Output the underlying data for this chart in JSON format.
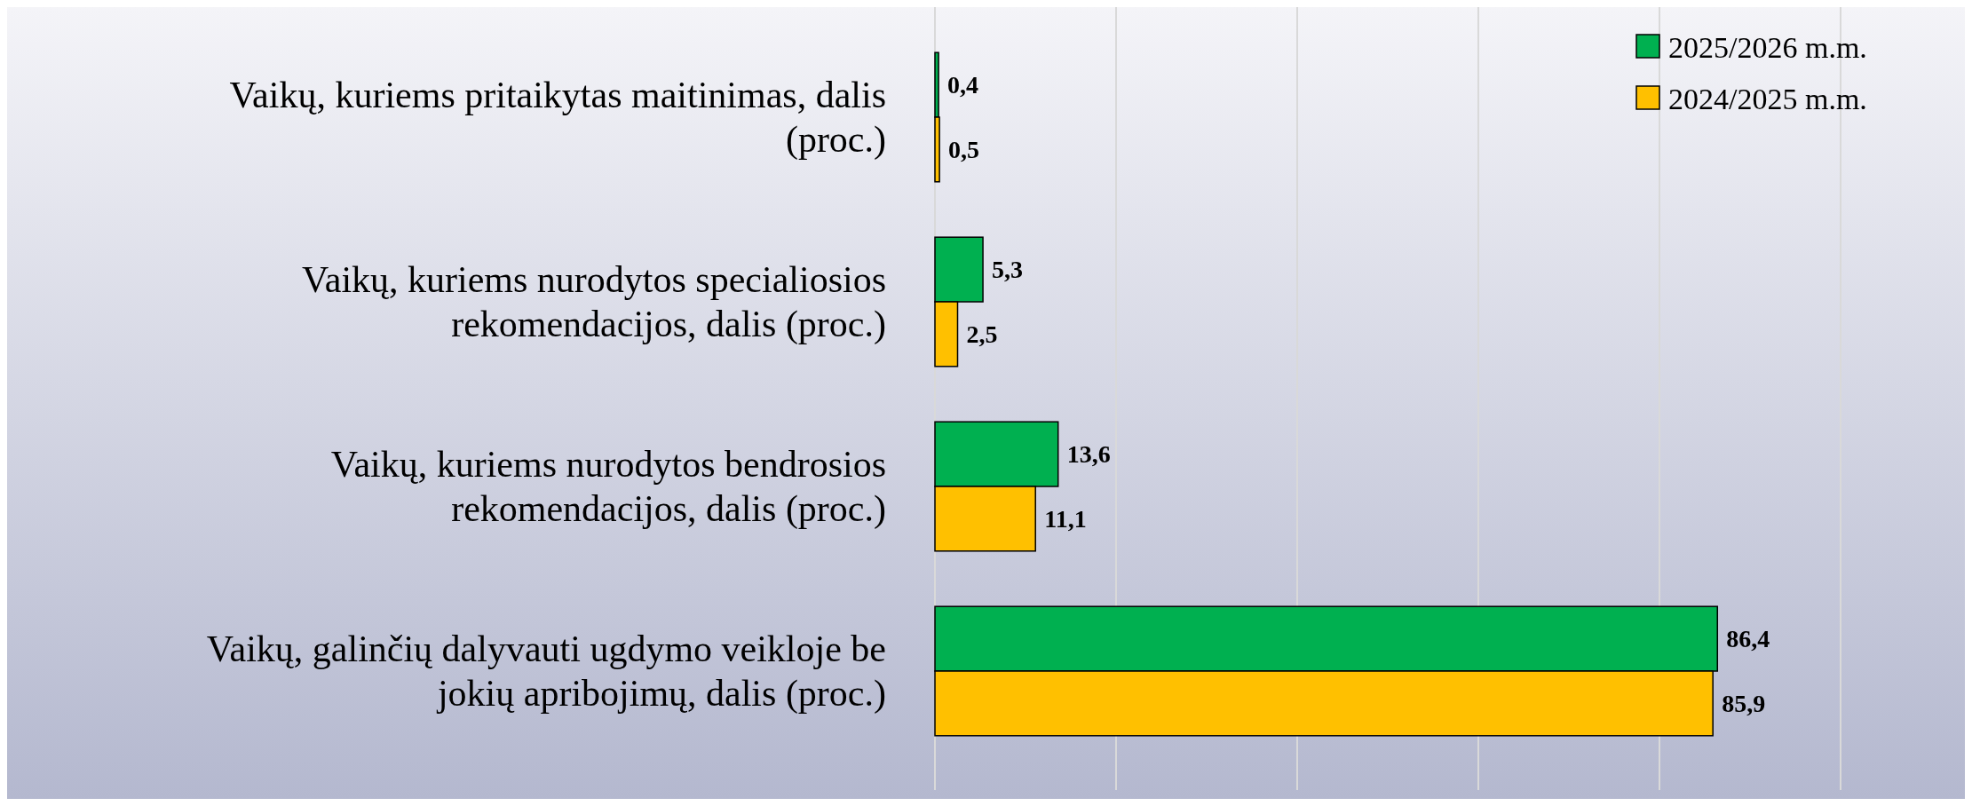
{
  "chart_data": {
    "type": "bar",
    "orientation": "horizontal",
    "categories": [
      "Vaikų, kuriems pritaikytas maitinimas, dalis (proc.)",
      "Vaikų, kuriems nurodytos specialiosios rekomendacijos, dalis (proc.)",
      "Vaikų, kuriems nurodytos bendrosios rekomendacijos, dalis (proc.)",
      "Vaikų, galinčių dalyvauti ugdymo veikloje be jokių apribojimų, dalis (proc.)"
    ],
    "series": [
      {
        "name": "2025/2026 m.m.",
        "color": "#00b050",
        "values": [
          0.4,
          5.3,
          13.6,
          86.4
        ],
        "value_labels": [
          "0,4",
          "5,3",
          "13,6",
          "86,4"
        ]
      },
      {
        "name": "2024/2025 m.m.",
        "color": "#ffc000",
        "values": [
          0.5,
          2.5,
          11.1,
          85.9
        ],
        "value_labels": [
          "0,5",
          "2,5",
          "11,1",
          "85,9"
        ]
      }
    ],
    "xlim": [
      0,
      100
    ],
    "xticks": [
      {
        "value": 0,
        "label": null
      },
      {
        "value": 20,
        "label": null
      },
      {
        "value": 40,
        "label": null
      },
      {
        "value": 60,
        "label": null
      },
      {
        "value": 80,
        "label": null
      },
      {
        "value": 100,
        "label": null
      }
    ],
    "grid": "x",
    "legend": "top right"
  }
}
